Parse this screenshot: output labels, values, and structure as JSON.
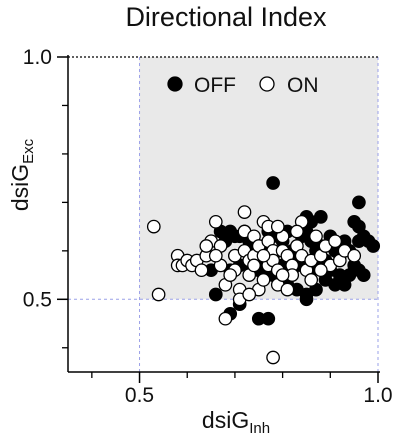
{
  "chart_data": {
    "type": "scatter",
    "title": "Directional Index",
    "xlabel": {
      "main": "dsiG",
      "sub": "Inh"
    },
    "ylabel": {
      "main": "dsiG",
      "sub": "Exc"
    },
    "xlim": [
      0.35,
      1.0
    ],
    "ylim": [
      0.35,
      1.0
    ],
    "xticks": [
      "0.5",
      "1.0"
    ],
    "yticks": [
      "0.5",
      "1.0"
    ],
    "shaded_region": {
      "x": [
        0.5,
        1.0
      ],
      "y": [
        0.5,
        1.0
      ],
      "color": "#e9e9e9"
    },
    "legend": {
      "position": "top",
      "entries": [
        "OFF",
        "ON"
      ]
    },
    "colors": {
      "OFF": "#000000",
      "ON": "#ffffff",
      "edge": "#000000",
      "guide": "#9aa0e8"
    },
    "series": [
      {
        "name": "OFF",
        "points": [
          [
            0.78,
            0.74
          ],
          [
            0.85,
            0.67
          ],
          [
            0.86,
            0.66
          ],
          [
            0.88,
            0.67
          ],
          [
            0.96,
            0.7
          ],
          [
            0.95,
            0.66
          ],
          [
            0.96,
            0.65
          ],
          [
            0.97,
            0.63
          ],
          [
            0.98,
            0.62
          ],
          [
            0.99,
            0.61
          ],
          [
            0.96,
            0.62
          ],
          [
            0.93,
            0.62
          ],
          [
            0.94,
            0.6
          ],
          [
            0.92,
            0.59
          ],
          [
            0.9,
            0.63
          ],
          [
            0.88,
            0.61
          ],
          [
            0.87,
            0.6
          ],
          [
            0.86,
            0.62
          ],
          [
            0.85,
            0.64
          ],
          [
            0.84,
            0.63
          ],
          [
            0.83,
            0.59
          ],
          [
            0.82,
            0.6
          ],
          [
            0.8,
            0.62
          ],
          [
            0.79,
            0.63
          ],
          [
            0.77,
            0.64
          ],
          [
            0.72,
            0.64
          ],
          [
            0.71,
            0.63
          ],
          [
            0.7,
            0.63
          ],
          [
            0.69,
            0.64
          ],
          [
            0.68,
            0.62
          ],
          [
            0.67,
            0.64
          ],
          [
            0.73,
            0.62
          ],
          [
            0.74,
            0.6
          ],
          [
            0.76,
            0.61
          ],
          [
            0.78,
            0.59
          ],
          [
            0.8,
            0.57
          ],
          [
            0.82,
            0.56
          ],
          [
            0.84,
            0.57
          ],
          [
            0.86,
            0.56
          ],
          [
            0.88,
            0.57
          ],
          [
            0.9,
            0.56
          ],
          [
            0.92,
            0.55
          ],
          [
            0.94,
            0.55
          ],
          [
            0.95,
            0.57
          ],
          [
            0.96,
            0.56
          ],
          [
            0.97,
            0.55
          ],
          [
            0.93,
            0.53
          ],
          [
            0.91,
            0.53
          ],
          [
            0.89,
            0.54
          ],
          [
            0.87,
            0.52
          ],
          [
            0.85,
            0.51
          ],
          [
            0.83,
            0.52
          ],
          [
            0.81,
            0.53
          ],
          [
            0.79,
            0.54
          ],
          [
            0.77,
            0.55
          ],
          [
            0.75,
            0.56
          ],
          [
            0.73,
            0.57
          ],
          [
            0.71,
            0.57
          ],
          [
            0.69,
            0.56
          ],
          [
            0.66,
            0.51
          ],
          [
            0.69,
            0.47
          ],
          [
            0.71,
            0.49
          ],
          [
            0.75,
            0.46
          ],
          [
            0.77,
            0.46
          ],
          [
            0.85,
            0.5
          ],
          [
            0.89,
            0.58
          ],
          [
            0.91,
            0.6
          ],
          [
            0.76,
            0.57
          ],
          [
            0.7,
            0.59
          ],
          [
            0.81,
            0.64
          ],
          [
            0.65,
            0.56
          ]
        ]
      },
      {
        "name": "ON",
        "points": [
          [
            0.53,
            0.65
          ],
          [
            0.54,
            0.51
          ],
          [
            0.58,
            0.59
          ],
          [
            0.58,
            0.57
          ],
          [
            0.59,
            0.57
          ],
          [
            0.6,
            0.58
          ],
          [
            0.61,
            0.57
          ],
          [
            0.62,
            0.58
          ],
          [
            0.64,
            0.59
          ],
          [
            0.65,
            0.62
          ],
          [
            0.66,
            0.66
          ],
          [
            0.67,
            0.61
          ],
          [
            0.67,
            0.57
          ],
          [
            0.68,
            0.53
          ],
          [
            0.68,
            0.46
          ],
          [
            0.7,
            0.59
          ],
          [
            0.7,
            0.56
          ],
          [
            0.71,
            0.52
          ],
          [
            0.72,
            0.64
          ],
          [
            0.72,
            0.6
          ],
          [
            0.73,
            0.58
          ],
          [
            0.73,
            0.55
          ],
          [
            0.74,
            0.63
          ],
          [
            0.74,
            0.59
          ],
          [
            0.75,
            0.52
          ],
          [
            0.75,
            0.61
          ],
          [
            0.76,
            0.54
          ],
          [
            0.77,
            0.57
          ],
          [
            0.77,
            0.62
          ],
          [
            0.78,
            0.6
          ],
          [
            0.78,
            0.58
          ],
          [
            0.79,
            0.53
          ],
          [
            0.79,
            0.56
          ],
          [
            0.8,
            0.6
          ],
          [
            0.8,
            0.63
          ],
          [
            0.81,
            0.52
          ],
          [
            0.81,
            0.59
          ],
          [
            0.82,
            0.57
          ],
          [
            0.82,
            0.55
          ],
          [
            0.83,
            0.61
          ],
          [
            0.84,
            0.66
          ],
          [
            0.84,
            0.59
          ],
          [
            0.85,
            0.56
          ],
          [
            0.86,
            0.58
          ],
          [
            0.87,
            0.63
          ],
          [
            0.88,
            0.59
          ],
          [
            0.89,
            0.61
          ],
          [
            0.9,
            0.57
          ],
          [
            0.91,
            0.62
          ],
          [
            0.92,
            0.58
          ],
          [
            0.93,
            0.6
          ],
          [
            0.95,
            0.59
          ],
          [
            0.76,
            0.66
          ],
          [
            0.77,
            0.65
          ],
          [
            0.72,
            0.68
          ],
          [
            0.78,
            0.38
          ],
          [
            0.63,
            0.56
          ],
          [
            0.64,
            0.61
          ],
          [
            0.66,
            0.59
          ],
          [
            0.69,
            0.55
          ],
          [
            0.71,
            0.5
          ],
          [
            0.73,
            0.51
          ],
          [
            0.86,
            0.54
          ],
          [
            0.88,
            0.56
          ],
          [
            0.83,
            0.64
          ],
          [
            0.8,
            0.55
          ],
          [
            0.74,
            0.57
          ],
          [
            0.76,
            0.59
          ],
          [
            0.79,
            0.65
          ]
        ]
      }
    ]
  }
}
